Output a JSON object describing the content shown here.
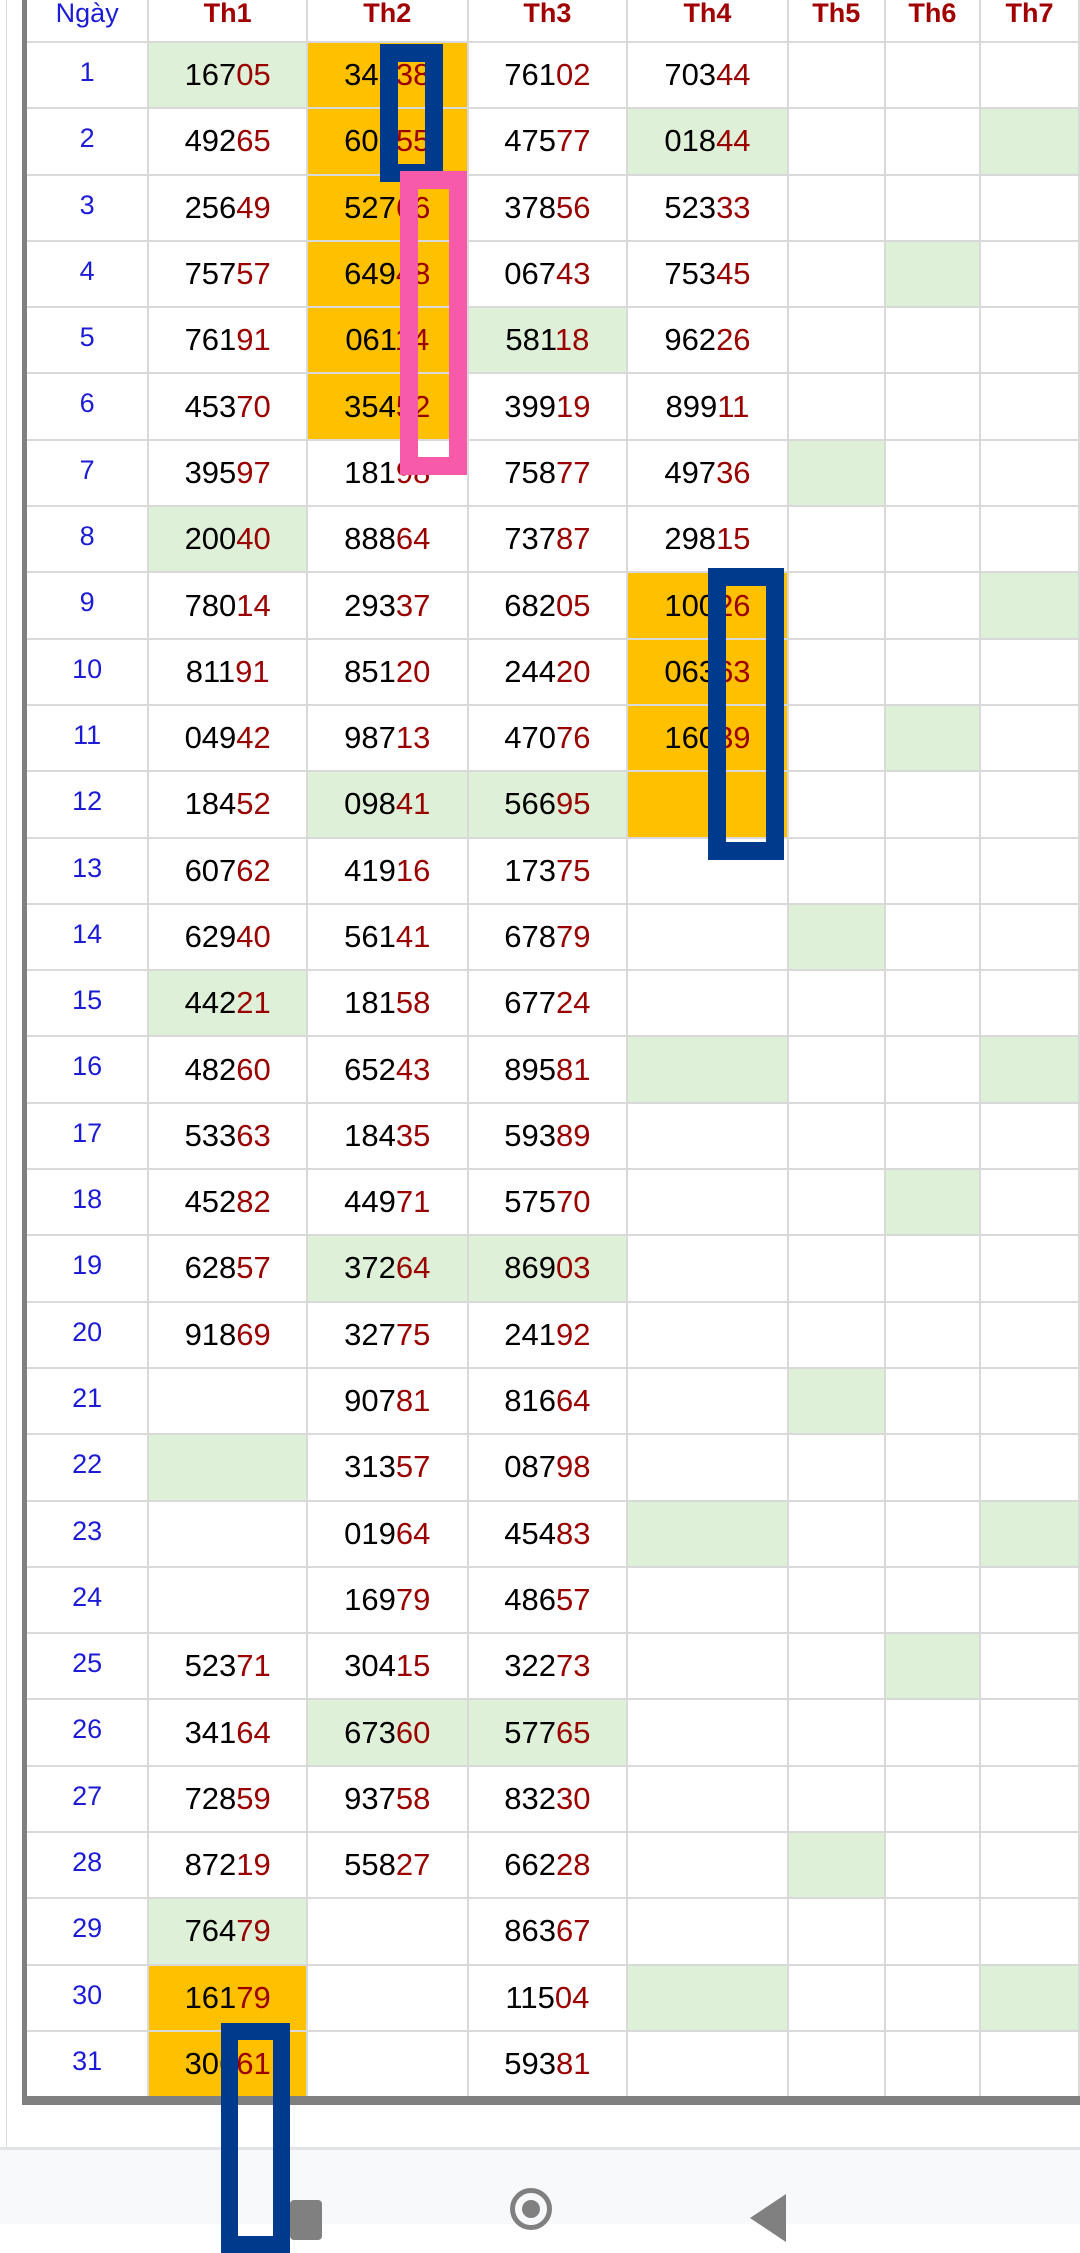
{
  "table": {
    "headers": [
      "Ngày",
      "Th1",
      "Th2",
      "Th3",
      "Th4",
      "Th5",
      "Th6",
      "Th7"
    ],
    "days": [
      "1",
      "2",
      "3",
      "4",
      "5",
      "6",
      "7",
      "8",
      "9",
      "10",
      "11",
      "12",
      "13",
      "14",
      "15",
      "16",
      "17",
      "18",
      "19",
      "20",
      "21",
      "22",
      "23",
      "24",
      "25",
      "26",
      "27",
      "28",
      "29",
      "30",
      "31"
    ],
    "columns": [
      [
        "16705",
        "49265",
        "25649",
        "75757",
        "76191",
        "45370",
        "39597",
        "20040",
        "78014",
        "81191",
        "04942",
        "18452",
        "60762",
        "62940",
        "44221",
        "48260",
        "53363",
        "45282",
        "62857",
        "91869",
        "",
        "",
        "",
        "",
        "52371",
        "34164",
        "72859",
        "87219",
        "76479",
        "16179",
        "30661"
      ],
      [
        "34338",
        "60755",
        "52766",
        "64948",
        "06114",
        "35452",
        "18198",
        "88864",
        "29337",
        "85120",
        "98713",
        "09841",
        "41916",
        "56141",
        "18158",
        "65243",
        "18435",
        "44971",
        "37264",
        "32775",
        "90781",
        "31357",
        "01964",
        "16979",
        "30415",
        "67360",
        "93758",
        "55827",
        "",
        "",
        ""
      ],
      [
        "76102",
        "47577",
        "37856",
        "06743",
        "58118",
        "39919",
        "75877",
        "73787",
        "68205",
        "24420",
        "47076",
        "56695",
        "17375",
        "67879",
        "67724",
        "89581",
        "59389",
        "57570",
        "86903",
        "24192",
        "81664",
        "08798",
        "45483",
        "48657",
        "32273",
        "57765",
        "83230",
        "66228",
        "86367",
        "11504",
        "59381"
      ],
      [
        "70344",
        "01844",
        "52333",
        "75345",
        "96226",
        "89911",
        "49736",
        "29815",
        "10026",
        "06363",
        "16039",
        "",
        "",
        "",
        "",
        "",
        "",
        "",
        "",
        "",
        "",
        "",
        "",
        "",
        "",
        "",
        "",
        "",
        "",
        "",
        ""
      ],
      [],
      [],
      []
    ],
    "green_cells": {
      "Th1": [
        1,
        8,
        15,
        22,
        29
      ],
      "Th2": [
        12,
        19,
        26
      ],
      "Th3": [
        5,
        12,
        19,
        26
      ],
      "Th4": [
        2,
        16,
        23,
        30
      ],
      "Th5": [
        7,
        14,
        21,
        28
      ],
      "Th6": [
        4,
        11,
        18,
        25
      ],
      "Th7": [
        2,
        9,
        16,
        23,
        30
      ]
    },
    "orange_cells": {
      "Th1": [
        30,
        31
      ],
      "Th2": [
        1,
        2,
        3,
        4,
        5,
        6
      ],
      "Th4": [
        9,
        10,
        11,
        12
      ]
    }
  },
  "colors": {
    "green_cell": "#dff0d8",
    "orange_cell": "#ffc000",
    "tail_digits": "#9b0000",
    "day_number": "#1c1cd6",
    "header": "#a00000",
    "marker_blue": "#003a8c",
    "marker_pink": "#f75aa8"
  },
  "nav": {
    "icons": [
      "recent-apps-icon",
      "home-icon",
      "back-icon"
    ]
  }
}
